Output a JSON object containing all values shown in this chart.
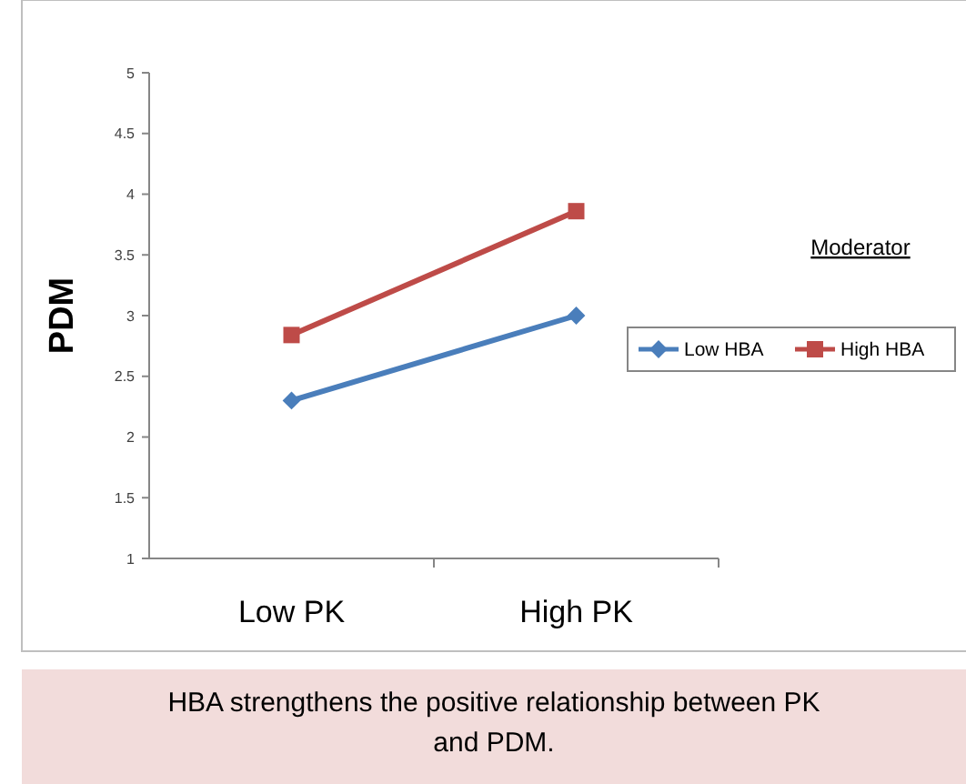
{
  "chart_data": {
    "type": "line",
    "ylabel": "PDM",
    "categories": [
      "Low PK",
      "High PK"
    ],
    "series": [
      {
        "name": "Low HBA",
        "color": "#4a7ebb",
        "values": [
          2.3,
          3.0
        ],
        "marker": "diamond"
      },
      {
        "name": "High HBA",
        "color": "#be4b48",
        "values": [
          2.84,
          3.86
        ],
        "marker": "square"
      }
    ],
    "ylim": [
      1,
      5
    ],
    "yticks": [
      1,
      1.5,
      2,
      2.5,
      3,
      3.5,
      4,
      4.5,
      5
    ],
    "legend": "right",
    "legend_title": "Moderator",
    "grid": false,
    "annotations": [
      "HBA strengthens the positive relationship between PK and PDM."
    ]
  }
}
